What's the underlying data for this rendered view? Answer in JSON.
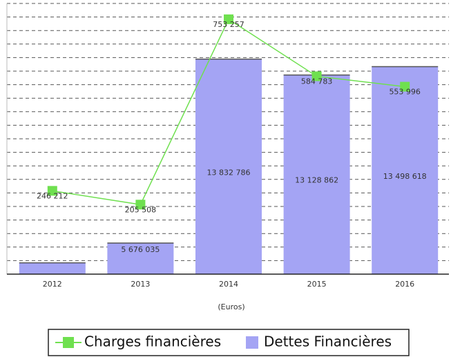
{
  "chart_data": {
    "type": "bar-line",
    "categories": [
      "2012",
      "2013",
      "2014",
      "2015",
      "2016"
    ],
    "x_label": "(Euros)",
    "series": [
      {
        "name": "Dettes Financières",
        "type": "bar",
        "color": "#a4a4f4",
        "values": [
          4800000,
          5676035,
          13832786,
          13128862,
          13498618
        ],
        "value_labels": [
          null,
          "5 676 035",
          "13 832 786",
          "13 128 862",
          "13 498 618"
        ]
      },
      {
        "name": "Charges financières",
        "type": "line",
        "axis": "y2",
        "color": "#6fe04f",
        "values": [
          246212,
          205508,
          753257,
          584783,
          553996
        ],
        "value_labels": [
          "246 212",
          "205 508",
          "753 257",
          "584 783",
          "553 996"
        ]
      }
    ],
    "ylim": [
      4300000,
      16300000
    ],
    "yticks": [
      4300000,
      4900000,
      5500000,
      6100000,
      6700000,
      7300000,
      7900000,
      8500000,
      9100000,
      9700000,
      10300000,
      10900000,
      11500000,
      12100000,
      12700000,
      13300000,
      13900000,
      14500000,
      15100000,
      15700000,
      16300000
    ],
    "y2lim": [
      0,
      800000
    ],
    "grid": true,
    "legend": "bottom"
  }
}
